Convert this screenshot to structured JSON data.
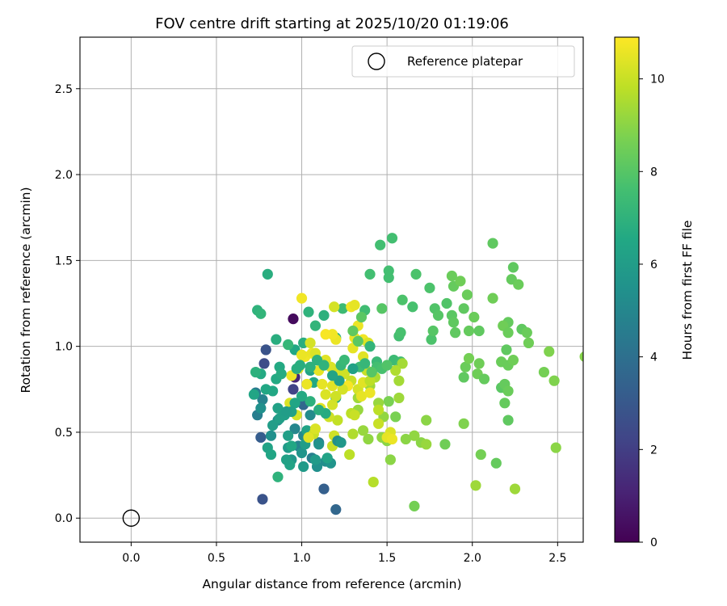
{
  "chart_data": {
    "type": "scatter",
    "title": "FOV centre drift starting at 2025/10/20 01:19:06",
    "xlabel": "Angular distance from reference (arcmin)",
    "ylabel": "Rotation from reference (arcmin)",
    "xlim": [
      -0.3,
      2.65
    ],
    "ylim": [
      -0.14,
      2.8
    ],
    "x_ticks": [
      "0.0",
      "0.5",
      "1.0",
      "1.5",
      "2.0",
      "2.5"
    ],
    "y_ticks": [
      "0.0",
      "0.5",
      "1.0",
      "1.5",
      "2.0",
      "2.5"
    ],
    "grid": true,
    "legend": {
      "placement": "upper right",
      "entries": [
        "Reference platepar"
      ]
    },
    "colorbar": {
      "label": "Hours from first FF file",
      "colormap": "viridis",
      "range": [
        0,
        10.9
      ],
      "ticks": [
        "0",
        "2",
        "4",
        "6",
        "8",
        "10"
      ]
    },
    "reference_point": {
      "x": 0.0,
      "y": 0.0,
      "label": "Reference platepar"
    },
    "points": [
      [
        0.95,
        1.16,
        0.3
      ],
      [
        0.79,
        0.98,
        2.8
      ],
      [
        0.78,
        0.9,
        2.5
      ],
      [
        0.77,
        0.11,
        2.8
      ],
      [
        1.2,
        0.05,
        3.6
      ],
      [
        1.13,
        0.17,
        3.3
      ],
      [
        0.76,
        0.47,
        3.2
      ],
      [
        0.95,
        0.75,
        2.2
      ],
      [
        1.01,
        0.66,
        3.6
      ],
      [
        0.96,
        0.82,
        1.2
      ],
      [
        1.1,
        0.44,
        4.5
      ],
      [
        1.06,
        0.35,
        4.6
      ],
      [
        0.74,
        0.6,
        4.6
      ],
      [
        0.73,
        0.73,
        4.5
      ],
      [
        0.77,
        0.69,
        4.8
      ],
      [
        0.98,
        0.42,
        4.9
      ],
      [
        1.01,
        0.48,
        5.1
      ],
      [
        0.86,
        0.57,
        5.2
      ],
      [
        0.96,
        0.52,
        5.0
      ],
      [
        1.05,
        0.6,
        5.2
      ],
      [
        0.76,
        0.64,
        5.4
      ],
      [
        0.82,
        0.48,
        5.4
      ],
      [
        1.09,
        0.3,
        5.4
      ],
      [
        1.14,
        0.33,
        5.3
      ],
      [
        1.17,
        0.32,
        5.6
      ],
      [
        1.0,
        0.38,
        5.6
      ],
      [
        0.94,
        0.34,
        5.7
      ],
      [
        0.92,
        0.41,
        5.9
      ],
      [
        1.02,
        0.43,
        6.0
      ],
      [
        0.83,
        0.54,
        6.0
      ],
      [
        0.92,
        0.48,
        6.1
      ],
      [
        0.86,
        0.64,
        6.2
      ],
      [
        0.87,
        0.58,
        6.1
      ],
      [
        0.9,
        0.6,
        6.1
      ],
      [
        1.03,
        0.51,
        6.3
      ],
      [
        1.07,
        0.79,
        6.5
      ],
      [
        1.05,
        0.86,
        6.3
      ],
      [
        0.96,
        0.98,
        6.5
      ],
      [
        1.2,
        0.7,
        6.6
      ],
      [
        0.93,
        0.31,
        6.3
      ],
      [
        1.01,
        0.3,
        5.9
      ],
      [
        0.8,
        0.41,
        6.3
      ],
      [
        0.82,
        0.37,
        6.4
      ],
      [
        0.79,
        0.75,
        6.5
      ],
      [
        0.83,
        0.74,
        6.5
      ],
      [
        0.87,
        0.88,
        6.6
      ],
      [
        0.76,
        0.84,
        6.6
      ],
      [
        0.72,
        0.72,
        6.4
      ],
      [
        0.73,
        0.85,
        6.9
      ],
      [
        0.8,
        1.42,
        6.8
      ],
      [
        0.74,
        1.21,
        7.0
      ],
      [
        0.76,
        1.19,
        7.1
      ],
      [
        0.85,
        1.04,
        6.8
      ],
      [
        0.92,
        1.01,
        7.2
      ],
      [
        1.01,
        1.02,
        6.8
      ],
      [
        1.04,
        1.2,
        7.0
      ],
      [
        1.08,
        1.12,
        7.1
      ],
      [
        1.13,
        1.18,
        6.9
      ],
      [
        1.24,
        1.22,
        7.4
      ],
      [
        1.2,
        1.05,
        6.9
      ],
      [
        1.37,
        1.21,
        7.5
      ],
      [
        1.46,
        1.59,
        7.6
      ],
      [
        1.53,
        1.63,
        7.6
      ],
      [
        1.51,
        1.4,
        7.6
      ],
      [
        1.51,
        1.44,
        7.6
      ],
      [
        1.4,
        1.42,
        7.6
      ],
      [
        1.57,
        1.06,
        7.6
      ],
      [
        1.58,
        1.08,
        7.7
      ],
      [
        1.54,
        0.92,
        7.4
      ],
      [
        1.58,
        0.91,
        7.5
      ],
      [
        1.59,
        1.27,
        7.8
      ],
      [
        1.67,
        1.42,
        7.8
      ],
      [
        1.65,
        1.23,
        7.7
      ],
      [
        1.75,
        1.34,
        7.8
      ],
      [
        1.78,
        1.22,
        7.9
      ],
      [
        1.85,
        1.25,
        7.9
      ],
      [
        1.8,
        1.18,
        8.0
      ],
      [
        1.76,
        1.04,
        7.8
      ],
      [
        1.77,
        1.09,
        8.0
      ],
      [
        1.88,
        1.18,
        8.1
      ],
      [
        1.89,
        1.14,
        8.2
      ],
      [
        1.9,
        1.08,
        8.2
      ],
      [
        1.95,
        1.22,
        8.2
      ],
      [
        1.97,
        1.3,
        8.4
      ],
      [
        1.98,
        1.09,
        8.3
      ],
      [
        2.01,
        1.17,
        8.4
      ],
      [
        2.04,
        1.09,
        8.2
      ],
      [
        1.89,
        1.35,
        8.3
      ],
      [
        1.88,
        1.41,
        8.4
      ],
      [
        1.93,
        1.38,
        8.5
      ],
      [
        2.12,
        1.6,
        8.2
      ],
      [
        2.24,
        1.46,
        8.2
      ],
      [
        2.23,
        1.39,
        8.3
      ],
      [
        2.27,
        1.36,
        8.4
      ],
      [
        2.12,
        1.28,
        8.5
      ],
      [
        2.21,
        1.14,
        8.3
      ],
      [
        2.18,
        1.12,
        8.5
      ],
      [
        2.21,
        1.08,
        8.4
      ],
      [
        2.29,
        1.1,
        8.2
      ],
      [
        2.32,
        1.08,
        8.4
      ],
      [
        2.33,
        1.02,
        8.5
      ],
      [
        2.2,
        0.98,
        8.2
      ],
      [
        2.17,
        0.91,
        8.4
      ],
      [
        2.21,
        0.89,
        8.4
      ],
      [
        2.24,
        0.92,
        8.5
      ],
      [
        2.04,
        0.9,
        8.5
      ],
      [
        2.03,
        0.84,
        8.5
      ],
      [
        1.96,
        0.88,
        8.4
      ],
      [
        1.98,
        0.93,
        8.6
      ],
      [
        1.95,
        0.82,
        8.2
      ],
      [
        2.07,
        0.81,
        8.3
      ],
      [
        2.17,
        0.76,
        8.1
      ],
      [
        2.19,
        0.78,
        8.3
      ],
      [
        2.21,
        0.74,
        8.4
      ],
      [
        2.19,
        0.67,
        8.3
      ],
      [
        2.21,
        0.57,
        8.2
      ],
      [
        2.14,
        0.32,
        8.3
      ],
      [
        2.05,
        0.37,
        8.6
      ],
      [
        1.95,
        0.55,
        8.8
      ],
      [
        1.84,
        0.43,
        8.5
      ],
      [
        2.45,
        0.97,
        8.8
      ],
      [
        2.42,
        0.85,
        8.6
      ],
      [
        2.48,
        0.8,
        8.8
      ],
      [
        2.49,
        0.41,
        9.0
      ],
      [
        2.66,
        0.94,
        8.9
      ],
      [
        1.73,
        0.57,
        9.0
      ],
      [
        1.7,
        0.44,
        9.0
      ],
      [
        1.66,
        0.48,
        9.1
      ],
      [
        1.61,
        0.46,
        9.0
      ],
      [
        1.73,
        0.43,
        9.2
      ],
      [
        1.66,
        0.07,
        8.6
      ],
      [
        2.02,
        0.19,
        9.3
      ],
      [
        2.25,
        0.17,
        9.3
      ],
      [
        1.52,
        0.34,
        9.0
      ],
      [
        1.55,
        0.59,
        8.7
      ],
      [
        1.51,
        0.68,
        8.7
      ],
      [
        1.48,
        0.59,
        9.1
      ],
      [
        1.47,
        0.47,
        9.1
      ],
      [
        1.5,
        0.45,
        9.0
      ],
      [
        1.39,
        0.46,
        9.1
      ],
      [
        1.36,
        0.51,
        9.2
      ],
      [
        1.33,
        0.63,
        9.2
      ],
      [
        1.33,
        0.7,
        9.3
      ],
      [
        1.45,
        0.67,
        9.2
      ],
      [
        1.57,
        0.7,
        9.3
      ],
      [
        1.57,
        0.8,
        9.4
      ],
      [
        1.59,
        0.9,
        9.4
      ],
      [
        1.55,
        0.86,
        9.6
      ],
      [
        1.43,
        0.82,
        9.5
      ],
      [
        1.4,
        0.77,
        9.3
      ],
      [
        1.42,
        0.21,
        9.7
      ],
      [
        1.28,
        0.37,
        9.8
      ],
      [
        1.21,
        0.57,
        9.9
      ],
      [
        1.18,
        0.42,
        10.0
      ],
      [
        1.07,
        0.49,
        10.0
      ],
      [
        1.08,
        0.52,
        10.3
      ],
      [
        1.04,
        0.47,
        10.4
      ],
      [
        0.97,
        0.6,
        10.2
      ],
      [
        0.93,
        0.67,
        10.3
      ],
      [
        1.11,
        0.64,
        10.4
      ],
      [
        1.18,
        0.66,
        10.2
      ],
      [
        1.16,
        0.59,
        10.1
      ],
      [
        1.2,
        0.71,
        10.1
      ],
      [
        1.14,
        0.72,
        10.3
      ],
      [
        1.12,
        0.78,
        10.5
      ],
      [
        1.03,
        0.78,
        10.6
      ],
      [
        1.1,
        0.86,
        10.5
      ],
      [
        0.94,
        0.83,
        10.6
      ],
      [
        0.98,
        0.87,
        10.4
      ],
      [
        1.02,
        0.94,
        10.7
      ],
      [
        1.06,
        0.96,
        10.6
      ],
      [
        1.0,
        0.95,
        10.6
      ],
      [
        1.14,
        0.92,
        10.4
      ],
      [
        1.17,
        0.88,
        10.3
      ],
      [
        1.22,
        0.86,
        10.2
      ],
      [
        1.25,
        0.84,
        10.1
      ],
      [
        1.29,
        0.8,
        10.0
      ],
      [
        1.33,
        0.75,
        10.2
      ],
      [
        1.36,
        0.79,
        10.4
      ],
      [
        1.4,
        0.8,
        9.8
      ],
      [
        1.38,
        0.86,
        10.0
      ],
      [
        1.36,
        0.94,
        10.4
      ],
      [
        1.3,
        0.99,
        10.5
      ],
      [
        1.31,
        1.05,
        10.6
      ],
      [
        1.36,
        1.04,
        10.7
      ],
      [
        1.39,
        1.02,
        10.3
      ],
      [
        1.33,
        1.12,
        10.6
      ],
      [
        1.29,
        1.23,
        10.7
      ],
      [
        1.31,
        1.24,
        10.5
      ],
      [
        1.19,
        1.23,
        10.2
      ],
      [
        1.2,
        1.04,
        10.6
      ],
      [
        1.18,
        1.07,
        10.7
      ],
      [
        1.14,
        1.07,
        10.8
      ],
      [
        1.0,
        1.28,
        10.7
      ],
      [
        1.05,
        1.02,
        10.2
      ],
      [
        1.08,
        0.96,
        10.3
      ],
      [
        1.18,
        0.77,
        10.4
      ],
      [
        1.27,
        0.77,
        10.8
      ],
      [
        1.35,
        0.71,
        10.5
      ],
      [
        1.4,
        0.73,
        10.6
      ],
      [
        1.24,
        0.75,
        10.2
      ],
      [
        1.45,
        0.55,
        10.0
      ],
      [
        1.52,
        0.5,
        10.3
      ],
      [
        1.5,
        0.47,
        10.5
      ],
      [
        1.53,
        0.46,
        10.6
      ],
      [
        1.45,
        0.63,
        9.8
      ],
      [
        1.29,
        0.61,
        9.8
      ],
      [
        1.31,
        0.6,
        10.0
      ],
      [
        1.3,
        0.49,
        9.6
      ],
      [
        1.19,
        0.48,
        10.1
      ],
      [
        0.94,
        0.42,
        6.5
      ],
      [
        0.91,
        0.34,
        6.2
      ],
      [
        0.86,
        0.24,
        7.0
      ],
      [
        1.08,
        0.34,
        5.9
      ],
      [
        1.1,
        0.43,
        5.5
      ],
      [
        1.21,
        0.45,
        5.3
      ],
      [
        1.23,
        0.44,
        5.8
      ],
      [
        1.15,
        0.35,
        6.3
      ],
      [
        0.85,
        0.81,
        6.6
      ],
      [
        0.88,
        0.84,
        6.7
      ],
      [
        0.97,
        0.87,
        6.8
      ],
      [
        0.99,
        0.89,
        6.8
      ],
      [
        1.05,
        0.88,
        6.9
      ],
      [
        1.09,
        0.92,
        6.9
      ],
      [
        1.13,
        0.89,
        7.0
      ],
      [
        1.23,
        0.89,
        7.2
      ],
      [
        1.25,
        0.92,
        7.3
      ],
      [
        1.3,
        0.87,
        7.3
      ],
      [
        1.34,
        0.88,
        7.4
      ],
      [
        1.37,
        0.9,
        7.2
      ],
      [
        1.4,
        1.0,
        7.1
      ],
      [
        1.44,
        0.91,
        7.3
      ],
      [
        1.44,
        0.88,
        7.6
      ],
      [
        1.47,
        0.87,
        7.7
      ],
      [
        1.5,
        0.89,
        7.9
      ],
      [
        1.41,
        0.85,
        8.0
      ],
      [
        1.33,
        1.03,
        8.1
      ],
      [
        1.3,
        1.09,
        8.2
      ],
      [
        1.35,
        1.17,
        8.1
      ],
      [
        1.47,
        1.22,
        8.0
      ],
      [
        1.3,
        0.87,
        6.2
      ],
      [
        1.22,
        0.8,
        6.1
      ],
      [
        1.18,
        0.83,
        6.3
      ],
      [
        1.14,
        0.61,
        6.7
      ],
      [
        1.1,
        0.63,
        6.8
      ],
      [
        1.05,
        0.68,
        6.9
      ],
      [
        1.0,
        0.71,
        6.6
      ],
      [
        0.96,
        0.67,
        6.4
      ],
      [
        0.94,
        0.62,
        6.2
      ],
      [
        0.91,
        0.62,
        6.0
      ]
    ]
  }
}
